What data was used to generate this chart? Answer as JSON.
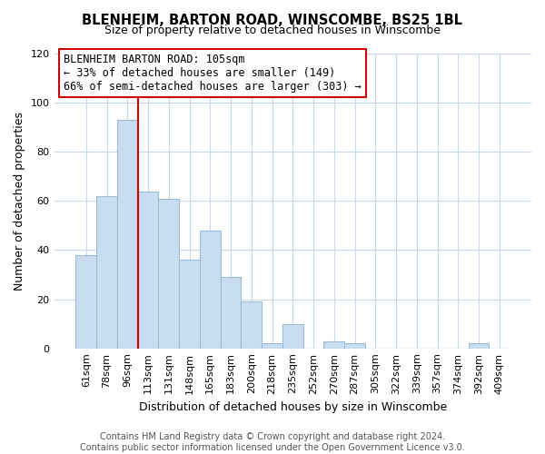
{
  "title": "BLENHEIM, BARTON ROAD, WINSCOMBE, BS25 1BL",
  "subtitle": "Size of property relative to detached houses in Winscombe",
  "xlabel": "Distribution of detached houses by size in Winscombe",
  "ylabel": "Number of detached properties",
  "bar_labels": [
    "61sqm",
    "78sqm",
    "96sqm",
    "113sqm",
    "131sqm",
    "148sqm",
    "165sqm",
    "183sqm",
    "200sqm",
    "218sqm",
    "235sqm",
    "252sqm",
    "270sqm",
    "287sqm",
    "305sqm",
    "322sqm",
    "339sqm",
    "357sqm",
    "374sqm",
    "392sqm",
    "409sqm"
  ],
  "bar_values": [
    38,
    62,
    93,
    64,
    61,
    36,
    48,
    29,
    19,
    2,
    10,
    0,
    3,
    2,
    0,
    0,
    0,
    0,
    0,
    2,
    0
  ],
  "bar_color": "#c9ddf0",
  "bar_edge_color": "#9bbcd8",
  "vline_color": "#cc0000",
  "vline_x": 2.5,
  "ylim": [
    0,
    120
  ],
  "yticks": [
    0,
    20,
    40,
    60,
    80,
    100,
    120
  ],
  "annotation_title": "BLENHEIM BARTON ROAD: 105sqm",
  "annotation_line1": "← 33% of detached houses are smaller (149)",
  "annotation_line2": "66% of semi-detached houses are larger (303) →",
  "footer_line1": "Contains HM Land Registry data © Crown copyright and database right 2024.",
  "footer_line2": "Contains public sector information licensed under the Open Government Licence v3.0.",
  "background_color": "#ffffff",
  "grid_color": "#c8d8e8",
  "title_fontsize": 10.5,
  "subtitle_fontsize": 9,
  "axis_label_fontsize": 9,
  "tick_fontsize": 8,
  "annotation_fontsize": 8.5,
  "footer_fontsize": 7
}
